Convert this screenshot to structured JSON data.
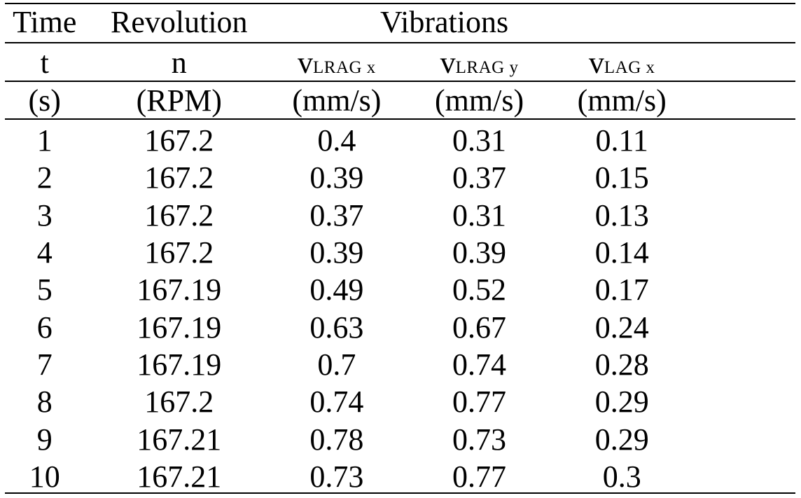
{
  "header": {
    "row1": {
      "time": "Time",
      "revolution": "Revolution",
      "vibrations": "Vibrations"
    },
    "row2": {
      "t": "t",
      "n": "n",
      "v1_main": "v",
      "v1_sub": "LRAG x",
      "v2_main": "v",
      "v2_sub": "LRAG y",
      "v3_main": "v",
      "v3_sub": "LAG x"
    },
    "row3": {
      "t_unit": "(s)",
      "n_unit": "(RPM)",
      "v1_unit": "(mm/s)",
      "v2_unit": "(mm/s)",
      "v3_unit": "(mm/s)"
    }
  },
  "rows": [
    [
      "1",
      "167.2",
      "0.4",
      "0.31",
      "0.11"
    ],
    [
      "2",
      "167.2",
      "0.39",
      "0.37",
      "0.15"
    ],
    [
      "3",
      "167.2",
      "0.37",
      "0.31",
      "0.13"
    ],
    [
      "4",
      "167.2",
      "0.39",
      "0.39",
      "0.14"
    ],
    [
      "5",
      "167.19",
      "0.49",
      "0.52",
      "0.17"
    ],
    [
      "6",
      "167.19",
      "0.63",
      "0.67",
      "0.24"
    ],
    [
      "7",
      "167.19",
      "0.7",
      "0.74",
      "0.28"
    ],
    [
      "8",
      "167.2",
      "0.74",
      "0.77",
      "0.29"
    ],
    [
      "9",
      "167.21",
      "0.78",
      "0.73",
      "0.29"
    ],
    [
      "10",
      "167.21",
      "0.73",
      "0.77",
      "0.3"
    ]
  ]
}
